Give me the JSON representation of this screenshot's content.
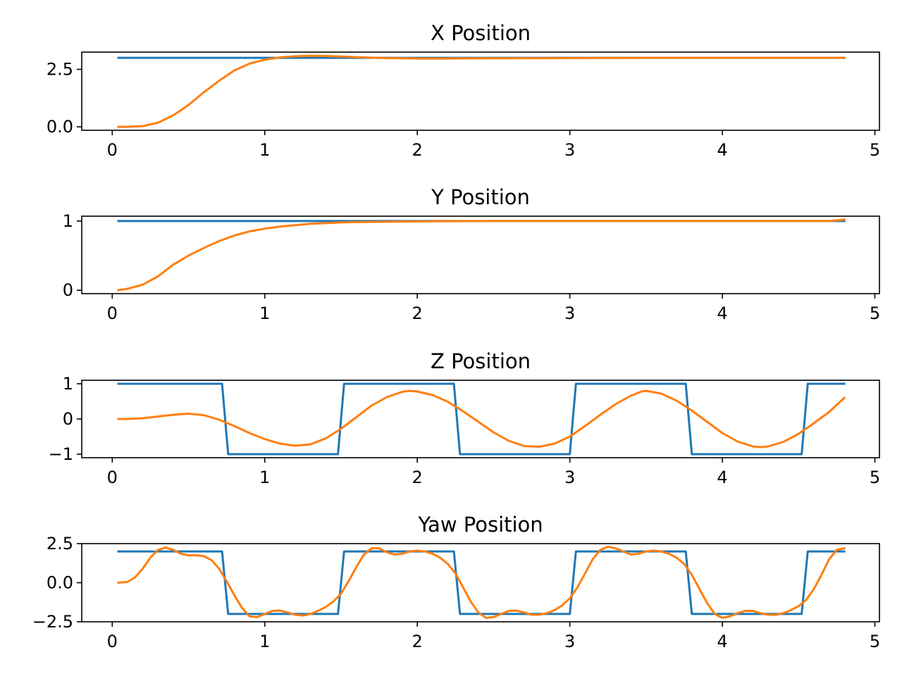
{
  "chart_data": [
    {
      "type": "line",
      "title": "X Position",
      "xlim": [
        -0.2,
        5.03
      ],
      "ylim": [
        -0.15,
        3.25
      ],
      "xticks": [
        0,
        1,
        2,
        3,
        4,
        5
      ],
      "xtick_labels": [
        "0",
        "1",
        "2",
        "3",
        "4",
        "5"
      ],
      "yticks": [
        0.0,
        2.5
      ],
      "ytick_labels": [
        "0.0",
        "2.5"
      ],
      "series": [
        {
          "color": "#1f77b4",
          "x": [
            0.04,
            4.8
          ],
          "y": [
            3.0,
            3.0
          ]
        },
        {
          "color": "#ff7f0e",
          "x": [
            0.04,
            0.1,
            0.2,
            0.3,
            0.4,
            0.5,
            0.6,
            0.7,
            0.8,
            0.9,
            1.0,
            1.1,
            1.2,
            1.3,
            1.4,
            1.5,
            1.6,
            1.7,
            1.8,
            1.9,
            2.0,
            2.2,
            2.5,
            3.0,
            3.5,
            4.0,
            4.5,
            4.8
          ],
          "y": [
            0.0,
            0.0,
            0.03,
            0.18,
            0.5,
            0.95,
            1.5,
            2.0,
            2.45,
            2.75,
            2.92,
            3.02,
            3.07,
            3.09,
            3.08,
            3.06,
            3.03,
            3.01,
            2.99,
            2.98,
            2.97,
            2.97,
            2.98,
            2.99,
            3.0,
            3.0,
            3.0,
            3.0
          ]
        }
      ]
    },
    {
      "type": "line",
      "title": "Y Position",
      "xlim": [
        -0.2,
        5.03
      ],
      "ylim": [
        -0.05,
        1.07
      ],
      "xticks": [
        0,
        1,
        2,
        3,
        4,
        5
      ],
      "xtick_labels": [
        "0",
        "1",
        "2",
        "3",
        "4",
        "5"
      ],
      "yticks": [
        0,
        1
      ],
      "ytick_labels": [
        "0",
        "1"
      ],
      "series": [
        {
          "color": "#1f77b4",
          "x": [
            0.04,
            4.8
          ],
          "y": [
            1.0,
            1.0
          ]
        },
        {
          "color": "#ff7f0e",
          "x": [
            0.04,
            0.1,
            0.2,
            0.3,
            0.4,
            0.5,
            0.6,
            0.7,
            0.8,
            0.9,
            1.0,
            1.1,
            1.2,
            1.3,
            1.4,
            1.5,
            1.6,
            1.8,
            2.0,
            2.5,
            3.0,
            3.5,
            4.0,
            4.5,
            4.7,
            4.8
          ],
          "y": [
            0.0,
            0.02,
            0.08,
            0.2,
            0.37,
            0.5,
            0.61,
            0.71,
            0.79,
            0.85,
            0.89,
            0.92,
            0.94,
            0.96,
            0.97,
            0.98,
            0.985,
            0.99,
            0.995,
            1.0,
            1.0,
            1.0,
            1.0,
            1.0,
            1.0,
            1.02
          ]
        }
      ]
    },
    {
      "type": "line",
      "title": "Z Position",
      "xlim": [
        -0.2,
        5.03
      ],
      "ylim": [
        -1.1,
        1.1
      ],
      "xticks": [
        0,
        1,
        2,
        3,
        4,
        5
      ],
      "xtick_labels": [
        "0",
        "1",
        "2",
        "3",
        "4",
        "5"
      ],
      "yticks": [
        -1,
        0,
        1
      ],
      "ytick_labels": [
        "−1",
        "0",
        "1"
      ],
      "series": [
        {
          "color": "#1f77b4",
          "x": [
            0.04,
            0.72,
            0.76,
            1.48,
            1.52,
            2.24,
            2.28,
            3.0,
            3.04,
            3.76,
            3.8,
            4.52,
            4.56,
            4.8
          ],
          "y": [
            1,
            1,
            -1,
            -1,
            1,
            1,
            -1,
            -1,
            1,
            1,
            -1,
            -1,
            1,
            1
          ]
        },
        {
          "color": "#ff7f0e",
          "x": [
            0.04,
            0.1,
            0.2,
            0.3,
            0.4,
            0.5,
            0.6,
            0.7,
            0.8,
            0.9,
            1.0,
            1.1,
            1.2,
            1.3,
            1.4,
            1.5,
            1.6,
            1.7,
            1.8,
            1.9,
            1.95,
            2.0,
            2.1,
            2.2,
            2.3,
            2.4,
            2.5,
            2.6,
            2.7,
            2.8,
            2.9,
            3.0,
            3.1,
            3.2,
            3.3,
            3.4,
            3.47,
            3.5,
            3.6,
            3.7,
            3.8,
            3.9,
            4.0,
            4.1,
            4.2,
            4.25,
            4.3,
            4.4,
            4.5,
            4.6,
            4.7,
            4.8
          ],
          "y": [
            0.0,
            0.0,
            0.02,
            0.07,
            0.12,
            0.15,
            0.11,
            -0.02,
            -0.2,
            -0.4,
            -0.57,
            -0.7,
            -0.76,
            -0.72,
            -0.55,
            -0.28,
            0.05,
            0.38,
            0.62,
            0.77,
            0.8,
            0.78,
            0.68,
            0.49,
            0.22,
            -0.08,
            -0.38,
            -0.62,
            -0.77,
            -0.79,
            -0.7,
            -0.5,
            -0.2,
            0.12,
            0.42,
            0.66,
            0.78,
            0.8,
            0.72,
            0.52,
            0.24,
            -0.08,
            -0.4,
            -0.64,
            -0.78,
            -0.8,
            -0.78,
            -0.65,
            -0.42,
            -0.12,
            0.2,
            0.6
          ]
        }
      ]
    },
    {
      "type": "line",
      "title": "Yaw Position",
      "xlim": [
        -0.2,
        5.03
      ],
      "ylim": [
        -2.5,
        2.5
      ],
      "xticks": [
        0,
        1,
        2,
        3,
        4,
        5
      ],
      "xtick_labels": [
        "0",
        "1",
        "2",
        "3",
        "4",
        "5"
      ],
      "yticks": [
        -2.5,
        0.0,
        2.5
      ],
      "ytick_labels": [
        "−2.5",
        "0.0",
        "2.5"
      ],
      "series": [
        {
          "color": "#1f77b4",
          "x": [
            0.04,
            0.72,
            0.76,
            1.48,
            1.52,
            2.24,
            2.28,
            3.0,
            3.04,
            3.76,
            3.8,
            4.52,
            4.56,
            4.8
          ],
          "y": [
            2,
            2,
            -2,
            -2,
            2,
            2,
            -2,
            -2,
            2,
            2,
            -2,
            -2,
            2,
            2
          ]
        },
        {
          "color": "#ff7f0e",
          "x": [
            0.04,
            0.1,
            0.15,
            0.2,
            0.25,
            0.3,
            0.35,
            0.4,
            0.45,
            0.5,
            0.55,
            0.6,
            0.65,
            0.7,
            0.75,
            0.8,
            0.85,
            0.9,
            0.95,
            1.0,
            1.05,
            1.1,
            1.15,
            1.2,
            1.25,
            1.3,
            1.35,
            1.4,
            1.45,
            1.5,
            1.55,
            1.6,
            1.65,
            1.7,
            1.75,
            1.8,
            1.85,
            1.9,
            1.95,
            2.0,
            2.05,
            2.1,
            2.15,
            2.2,
            2.25,
            2.3,
            2.35,
            2.4,
            2.45,
            2.5,
            2.55,
            2.6,
            2.65,
            2.7,
            2.75,
            2.8,
            2.85,
            2.9,
            2.95,
            3.0,
            3.05,
            3.1,
            3.15,
            3.2,
            3.25,
            3.3,
            3.35,
            3.4,
            3.45,
            3.5,
            3.55,
            3.6,
            3.65,
            3.7,
            3.75,
            3.8,
            3.85,
            3.9,
            3.95,
            4.0,
            4.05,
            4.1,
            4.15,
            4.2,
            4.25,
            4.3,
            4.35,
            4.4,
            4.45,
            4.5,
            4.55,
            4.6,
            4.65,
            4.7,
            4.75,
            4.8
          ],
          "y": [
            0.0,
            0.05,
            0.35,
            0.9,
            1.6,
            2.1,
            2.25,
            2.1,
            1.85,
            1.75,
            1.75,
            1.7,
            1.45,
            0.9,
            0.1,
            -0.8,
            -1.6,
            -2.15,
            -2.2,
            -2.0,
            -1.8,
            -1.78,
            -1.9,
            -2.05,
            -2.1,
            -2.0,
            -1.8,
            -1.55,
            -1.2,
            -0.7,
            0.1,
            1.0,
            1.8,
            2.2,
            2.2,
            1.95,
            1.8,
            1.85,
            2.0,
            2.05,
            2.0,
            1.85,
            1.6,
            1.2,
            0.6,
            -0.3,
            -1.2,
            -1.9,
            -2.25,
            -2.2,
            -2.0,
            -1.8,
            -1.78,
            -1.9,
            -2.05,
            -2.05,
            -1.95,
            -1.75,
            -1.45,
            -1.0,
            -0.3,
            0.6,
            1.5,
            2.1,
            2.3,
            2.2,
            2.0,
            1.8,
            1.85,
            2.0,
            2.05,
            2.0,
            1.85,
            1.6,
            1.2,
            0.5,
            -0.4,
            -1.3,
            -2.0,
            -2.25,
            -2.15,
            -1.95,
            -1.8,
            -1.8,
            -1.95,
            -2.05,
            -2.05,
            -1.95,
            -1.75,
            -1.5,
            -1.1,
            -0.4,
            0.5,
            1.5,
            2.1,
            2.2
          ]
        }
      ]
    }
  ]
}
